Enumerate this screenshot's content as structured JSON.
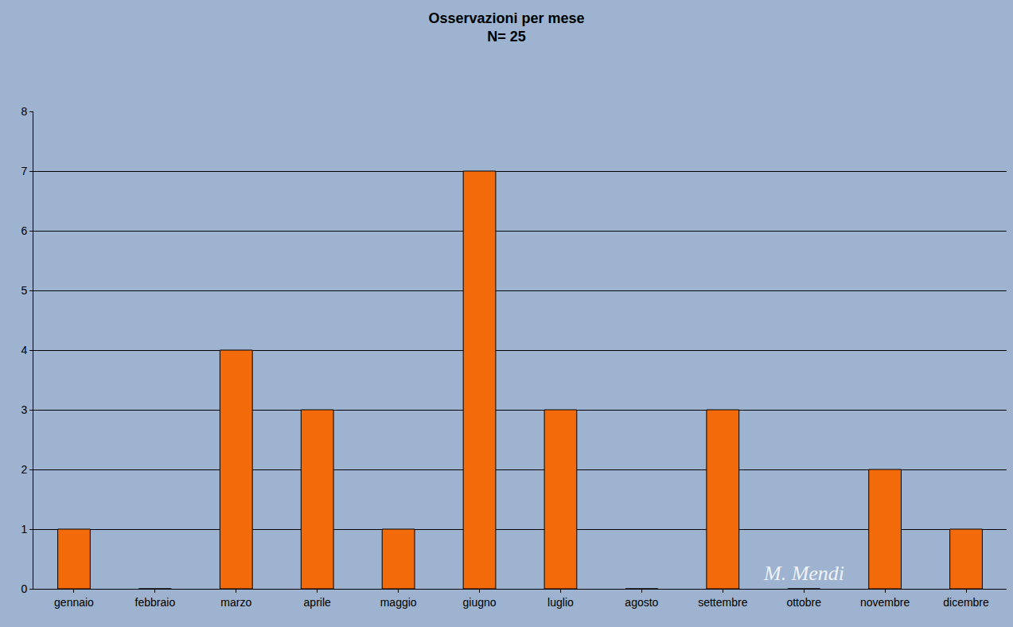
{
  "chart_data": {
    "type": "bar",
    "title": "Osservazioni per mese",
    "subtitle": "N= 25",
    "categories": [
      "gennaio",
      "febbraio",
      "marzo",
      "aprile",
      "maggio",
      "giugno",
      "luglio",
      "agosto",
      "settembre",
      "ottobre",
      "novembre",
      "dicembre"
    ],
    "values": [
      1,
      0,
      4,
      3,
      1,
      7,
      3,
      0,
      3,
      0,
      2,
      1
    ],
    "color": "#f26a0a",
    "ylim": [
      0,
      8
    ],
    "yticks": [
      0,
      1,
      2,
      3,
      4,
      5,
      6,
      7,
      8
    ],
    "grid": true,
    "annotations": [
      "M. Mendi"
    ]
  }
}
